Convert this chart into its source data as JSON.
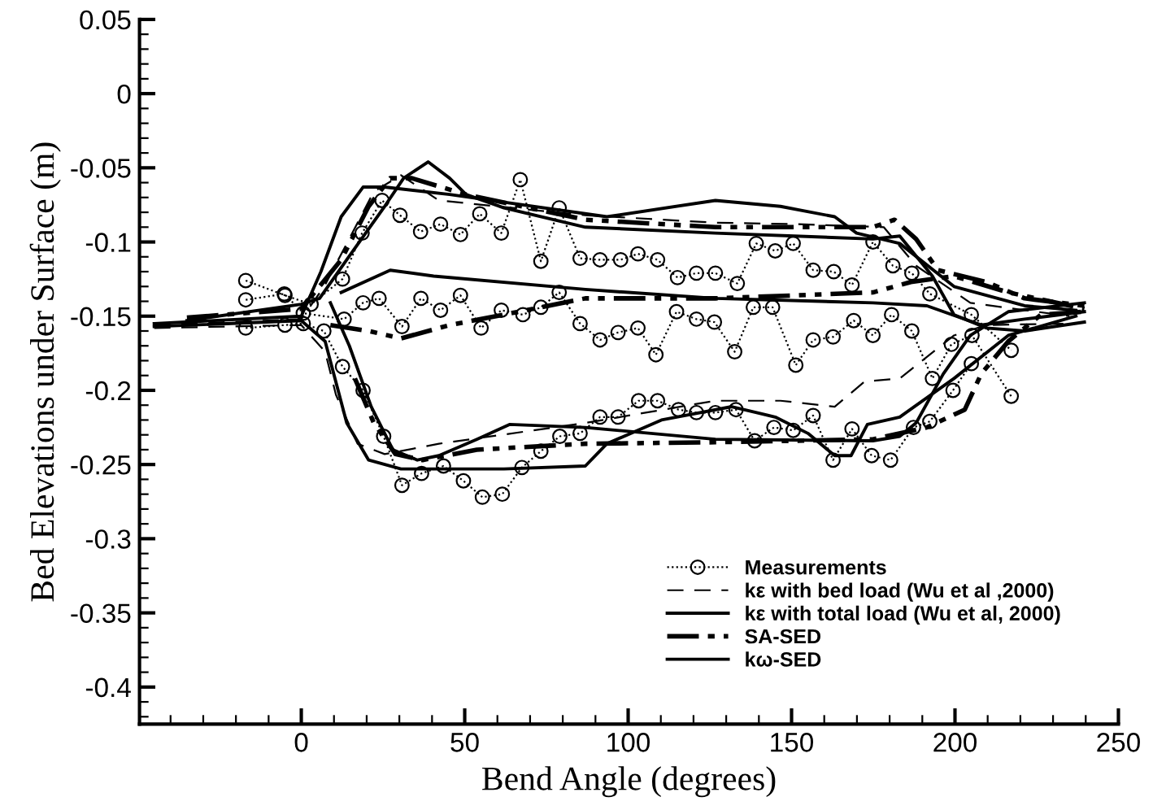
{
  "chart_data": {
    "type": "line",
    "xlabel": "Bend Angle (degrees)",
    "ylabel": "Bed Elevations under Surface (m)",
    "xlim": [
      -49.5,
      250
    ],
    "xticks": [
      0,
      50,
      100,
      150,
      200,
      250
    ],
    "ylim": [
      -0.425,
      0.05
    ],
    "yticks": [
      {
        "value": 0.05,
        "label": "0.05"
      },
      0,
      {
        "value": -0.05,
        "label": "-0.05"
      },
      {
        "value": -0.1,
        "label": "-0.1"
      },
      {
        "value": -0.15,
        "label": "-0.15"
      },
      {
        "value": -0.2,
        "label": "-0.2"
      },
      {
        "value": -0.25,
        "label": "-0.25"
      },
      {
        "value": -0.3,
        "label": "-0.3"
      },
      {
        "value": -0.35,
        "label": "-0.35"
      },
      {
        "value": -0.4,
        "label": "-0.4"
      }
    ],
    "grid": false,
    "legend": "bottom right",
    "series": [
      {
        "name": "Measurements",
        "color": "#000000",
        "line_style": "dotted",
        "marker": "circle",
        "x": [
          -17,
          -5,
          3,
          12.6,
          18.6,
          24.7,
          30.2,
          36.5,
          42.6,
          48.7,
          54.6,
          61.2,
          67,
          73.3,
          78.9,
          85.3,
          91.4,
          97.7,
          103,
          109,
          115.1,
          120.9,
          126.7,
          133.4,
          139.2,
          145,
          150.5,
          156.6,
          162.9,
          168.5,
          174.9,
          181,
          186.8,
          192.3,
          205,
          217.2
        ],
        "values": [
          -0.126,
          -0.136,
          -0.142,
          -0.125,
          -0.094,
          -0.072,
          -0.082,
          -0.093,
          -0.088,
          -0.095,
          -0.081,
          -0.094,
          -0.058,
          -0.113,
          -0.077,
          -0.111,
          -0.112,
          -0.112,
          -0.108,
          -0.112,
          -0.124,
          -0.121,
          -0.121,
          -0.128,
          -0.101,
          -0.106,
          -0.101,
          -0.119,
          -0.12,
          -0.129,
          -0.1,
          -0.116,
          -0.121,
          -0.135,
          -0.149,
          -0.173
        ]
      },
      {
        "color": "#000000",
        "line_style": "dotted",
        "marker": "circle",
        "x": [
          -17,
          -5.2,
          0.6,
          13.1,
          18.9,
          23.8,
          30.8,
          36.6,
          42.6,
          48.7,
          55,
          61.2,
          67.8,
          73.3,
          78.9,
          85.3,
          91.4,
          96.9,
          103,
          108.5,
          114.8,
          120.9,
          126.4,
          132.6,
          138.3,
          144.2,
          151.3,
          156.6,
          162.7,
          169,
          174.9,
          180.6,
          186.8,
          193.1,
          198.9,
          205.2,
          217.2
        ],
        "values": [
          -0.139,
          -0.135,
          -0.148,
          -0.152,
          -0.141,
          -0.138,
          -0.157,
          -0.138,
          -0.146,
          -0.136,
          -0.158,
          -0.146,
          -0.149,
          -0.144,
          -0.134,
          -0.155,
          -0.166,
          -0.161,
          -0.158,
          -0.176,
          -0.147,
          -0.152,
          -0.154,
          -0.174,
          -0.144,
          -0.144,
          -0.183,
          -0.166,
          -0.164,
          -0.153,
          -0.163,
          -0.149,
          -0.16,
          -0.192,
          -0.169,
          -0.163,
          -0.204
        ]
      },
      {
        "color": "#000000",
        "line_style": "dotted",
        "marker": "circle",
        "x": [
          -17,
          -5,
          0.6,
          6.9,
          12.6,
          18.9,
          25.2,
          30.8,
          36.8,
          43.5,
          49.6,
          55.4,
          61.5,
          67.5,
          73.3,
          79.1,
          85.3,
          91.4,
          96.9,
          103.2,
          109,
          115.4,
          120.9,
          126.7,
          133,
          138.7,
          144.6,
          150.5,
          156.6,
          162.7,
          168.5,
          174.5,
          180.3,
          187.3,
          192.3,
          199.4,
          205
        ],
        "values": [
          -0.158,
          -0.156,
          -0.155,
          -0.16,
          -0.184,
          -0.2,
          -0.231,
          -0.264,
          -0.256,
          -0.251,
          -0.261,
          -0.272,
          -0.27,
          -0.252,
          -0.241,
          -0.231,
          -0.229,
          -0.218,
          -0.218,
          -0.207,
          -0.207,
          -0.213,
          -0.215,
          -0.215,
          -0.213,
          -0.234,
          -0.225,
          -0.227,
          -0.217,
          -0.247,
          -0.226,
          -0.244,
          -0.247,
          -0.225,
          -0.221,
          -0.2,
          -0.182
        ]
      },
      {
        "name": "kε with bed load (Wu et al ,2000)",
        "color": "#000000",
        "line_style": "dashed",
        "marker": "none",
        "x": [
          -45,
          0,
          7,
          15.6,
          22.2,
          30.5,
          42.1,
          86.9,
          126.7,
          151.6,
          178.2,
          188.1,
          204.7,
          235
        ],
        "values": [
          -0.156,
          -0.152,
          -0.13,
          -0.094,
          -0.066,
          -0.055,
          -0.072,
          -0.082,
          -0.087,
          -0.088,
          -0.09,
          -0.116,
          -0.141,
          -0.15
        ]
      },
      {
        "color": "#000000",
        "line_style": "dashed",
        "marker": "none",
        "x": [
          -45,
          0,
          7.3,
          10.6,
          17.2,
          25.5,
          42.1,
          86.9,
          126.7,
          146.6,
          163.2,
          172.4,
          183.1,
          199.7,
          209.7,
          235
        ],
        "values": [
          -0.158,
          -0.156,
          -0.174,
          -0.203,
          -0.236,
          -0.243,
          -0.236,
          -0.222,
          -0.207,
          -0.207,
          -0.211,
          -0.194,
          -0.192,
          -0.163,
          -0.156,
          -0.155
        ]
      },
      {
        "name": "kε with total load (Wu et al, 2000)",
        "color": "#000000",
        "line_style": "solid",
        "marker": "none",
        "x": [
          -45,
          0,
          6,
          12.2,
          18.9,
          25.5,
          45.4,
          93.5,
          126.7,
          146.6,
          163.2,
          169.9,
          183.1,
          199.7,
          221.3,
          237
        ],
        "values": [
          -0.155,
          -0.15,
          -0.12,
          -0.083,
          -0.063,
          -0.063,
          -0.068,
          -0.083,
          -0.072,
          -0.076,
          -0.083,
          -0.094,
          -0.101,
          -0.13,
          -0.143,
          -0.146
        ]
      },
      {
        "color": "#000000",
        "line_style": "solid",
        "marker": "none",
        "x": [
          -45,
          0,
          7.3,
          13.9,
          20.6,
          30.5,
          62,
          86.9,
          93.5,
          110.2,
          131.7,
          145,
          155,
          163.2,
          168.2,
          173.2,
          183.1,
          199.7,
          216.3,
          237
        ],
        "values": [
          -0.157,
          -0.153,
          -0.167,
          -0.222,
          -0.247,
          -0.253,
          -0.253,
          -0.251,
          -0.236,
          -0.22,
          -0.211,
          -0.218,
          -0.229,
          -0.244,
          -0.244,
          -0.223,
          -0.218,
          -0.192,
          -0.163,
          -0.15
        ]
      },
      {
        "name": "SA-SED",
        "color": "#000000",
        "line_style": "dashdotdot",
        "marker": "none",
        "x": [
          -35,
          0,
          12.2,
          20.6,
          27.2,
          33.8,
          50.4,
          86.9,
          126.7,
          174.9,
          181.5,
          188.1,
          194.8,
          209.7,
          221.3,
          239.6
        ],
        "values": [
          -0.151,
          -0.145,
          -0.112,
          -0.076,
          -0.057,
          -0.057,
          -0.068,
          -0.085,
          -0.09,
          -0.09,
          -0.085,
          -0.098,
          -0.119,
          -0.127,
          -0.138,
          -0.143
        ]
      },
      {
        "color": "#000000",
        "line_style": "dashdotdot",
        "marker": "none",
        "x": [
          8.9,
          20.6,
          30.5,
          45.4,
          62,
          86.9,
          126.7,
          174.9,
          186.5,
          199.7,
          216.3,
          239.6
        ],
        "values": [
          -0.156,
          -0.16,
          -0.165,
          -0.156,
          -0.149,
          -0.138,
          -0.138,
          -0.134,
          -0.127,
          -0.123,
          -0.134,
          -0.145
        ]
      },
      {
        "color": "#000000",
        "line_style": "dashdotdot",
        "marker": "none",
        "x": [
          16.4,
          22.2,
          28.8,
          37.1,
          53.7,
          86.9,
          126.7,
          174.9,
          191.4,
          203,
          208,
          216.3,
          226.3,
          239.6
        ],
        "values": [
          -0.192,
          -0.222,
          -0.243,
          -0.247,
          -0.24,
          -0.236,
          -0.235,
          -0.233,
          -0.225,
          -0.213,
          -0.189,
          -0.167,
          -0.149,
          -0.147
        ]
      },
      {
        "name": "kω-SED",
        "color": "#000000",
        "line_style": "solid",
        "marker": "none",
        "x": [
          -35,
          0,
          5.6,
          13.9,
          25.5,
          31.3,
          38.8,
          45.4,
          50.4,
          62,
          86.9,
          126.7,
          174.9,
          183.1,
          193.1,
          199.7,
          209.7,
          221.3,
          239.6
        ],
        "values": [
          -0.153,
          -0.142,
          -0.138,
          -0.112,
          -0.076,
          -0.057,
          -0.046,
          -0.057,
          -0.068,
          -0.077,
          -0.09,
          -0.094,
          -0.098,
          -0.096,
          -0.123,
          -0.149,
          -0.158,
          -0.16,
          -0.154
        ]
      },
      {
        "color": "#000000",
        "line_style": "solid",
        "marker": "none",
        "x": [
          12.2,
          27.2,
          40.5,
          86.9,
          126.7,
          174.9,
          191.4,
          208,
          221.3,
          239.6
        ],
        "values": [
          -0.134,
          -0.119,
          -0.123,
          -0.132,
          -0.138,
          -0.141,
          -0.143,
          -0.156,
          -0.152,
          -0.147
        ]
      },
      {
        "color": "#000000",
        "line_style": "solid",
        "marker": "none",
        "x": [
          8.9,
          14.7,
          21.4,
          28,
          35.5,
          42.1,
          53.7,
          63.7,
          86.9,
          126.7,
          174.9,
          183.1,
          188.1,
          196.4,
          204.7,
          216.3,
          239.6
        ],
        "values": [
          -0.141,
          -0.17,
          -0.211,
          -0.24,
          -0.247,
          -0.244,
          -0.233,
          -0.223,
          -0.225,
          -0.233,
          -0.234,
          -0.231,
          -0.222,
          -0.189,
          -0.163,
          -0.147,
          -0.141
        ]
      }
    ]
  }
}
